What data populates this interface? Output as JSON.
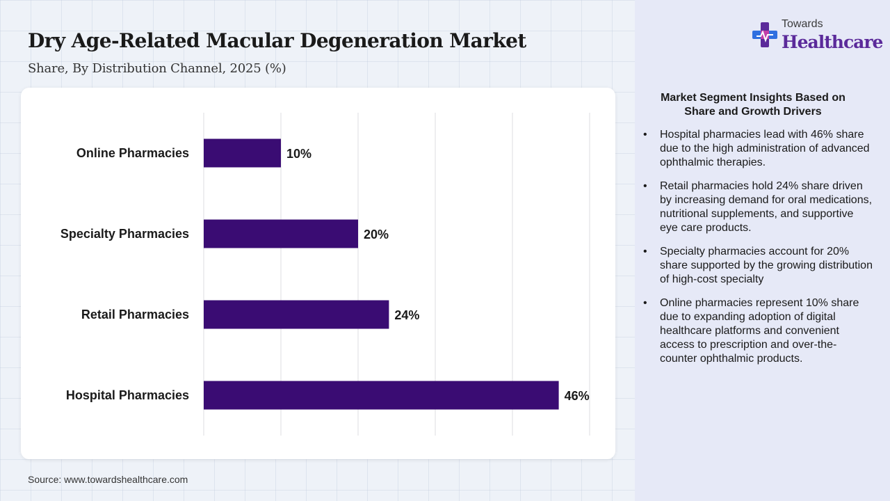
{
  "header": {
    "title": "Dry Age-Related Macular Degeneration Market",
    "subtitle": "Share, By Distribution Channel, 2025 (%)"
  },
  "logo": {
    "top_text": "Towards",
    "main_text": "Healthcare",
    "icon": "medical-cross-icon",
    "colors": {
      "purple": "#5b2a9a",
      "blue": "#2f6fe0",
      "magenta": "#c23fa8"
    }
  },
  "chart_data": {
    "type": "bar",
    "orientation": "horizontal",
    "categories": [
      "Online Pharmacies",
      "Specialty Pharmacies",
      "Retail Pharmacies",
      "Hospital Pharmacies"
    ],
    "values": [
      10,
      20,
      24,
      46
    ],
    "value_labels": [
      "10%",
      "20%",
      "24%",
      "46%"
    ],
    "xlim": [
      0,
      50
    ],
    "grid": true,
    "bar_color": "#3a0c73"
  },
  "insights": {
    "title": "Market Segment Insights Based on Share and Growth Drivers",
    "bullet": "•",
    "items": [
      "Hospital pharmacies lead with 46% share due to the high administration of advanced ophthalmic therapies.",
      "Retail pharmacies hold 24% share driven by increasing demand for oral medications, nutritional supplements, and supportive eye care products.",
      "Specialty pharmacies account for 20% share supported by the growing distribution of high-cost specialty",
      "Online pharmacies represent 10% share due to expanding adoption of digital healthcare platforms and convenient access to prescription and over-the-counter ophthalmic products."
    ]
  },
  "footer": {
    "source": "Source: www.towardshealthcare.com"
  }
}
